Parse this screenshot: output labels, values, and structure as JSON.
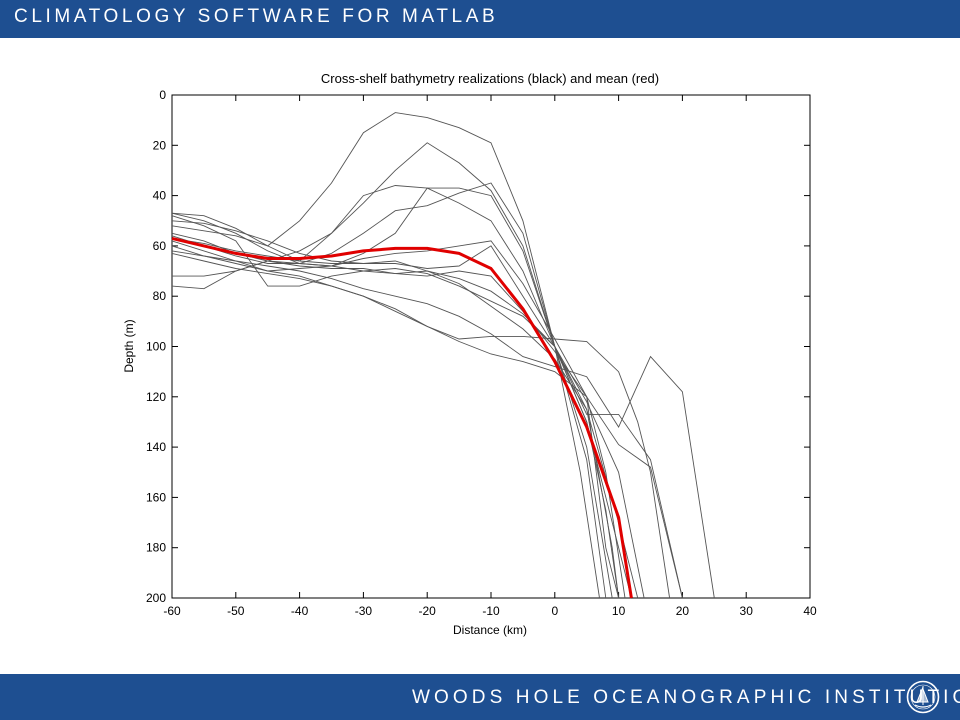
{
  "header": {
    "title": "CLIMATOLOGY SOFTWARE FOR MATLAB"
  },
  "footer": {
    "title": "WOODS HOLE OCEANOGRAPHIC INSTITUTION",
    "logo_icon": "whoi-seal-icon"
  },
  "colors": {
    "banner": "#1e4f91",
    "realization": "#555555",
    "mean": "#e00000"
  },
  "chart_data": {
    "type": "line",
    "title": "Cross-shelf bathymetry realizations (black) and mean (red)",
    "xlabel": "Distance (km)",
    "ylabel": "Depth (m)",
    "xlim": [
      -60,
      40
    ],
    "ylim": [
      0,
      200
    ],
    "y_reversed": true,
    "xticks": [
      -60,
      -50,
      -40,
      -30,
      -20,
      -10,
      0,
      10,
      20,
      30,
      40
    ],
    "yticks": [
      0,
      20,
      40,
      60,
      80,
      100,
      120,
      140,
      160,
      180,
      200
    ],
    "grid": false,
    "realizations": [
      [
        [
          -60,
          47
        ],
        [
          -55,
          48
        ],
        [
          -50,
          53
        ],
        [
          -45,
          60
        ],
        [
          -40,
          50
        ],
        [
          -35,
          35
        ],
        [
          -30,
          15
        ],
        [
          -25,
          7
        ],
        [
          -20,
          9
        ],
        [
          -15,
          13
        ],
        [
          -10,
          19
        ],
        [
          -5,
          50
        ],
        [
          0,
          100
        ],
        [
          5,
          130
        ],
        [
          8,
          165
        ],
        [
          10,
          200
        ]
      ],
      [
        [
          -60,
          52
        ],
        [
          -55,
          54
        ],
        [
          -50,
          56
        ],
        [
          -45,
          60
        ],
        [
          -40,
          66
        ],
        [
          -35,
          55
        ],
        [
          -30,
          43
        ],
        [
          -25,
          30
        ],
        [
          -20,
          19
        ],
        [
          -15,
          27
        ],
        [
          -10,
          38
        ],
        [
          -5,
          60
        ],
        [
          0,
          100
        ],
        [
          5,
          140
        ],
        [
          9,
          200
        ]
      ],
      [
        [
          -60,
          56
        ],
        [
          -55,
          60
        ],
        [
          -50,
          64
        ],
        [
          -45,
          67
        ],
        [
          -40,
          67
        ],
        [
          -35,
          63
        ],
        [
          -30,
          55
        ],
        [
          -25,
          46
        ],
        [
          -20,
          44
        ],
        [
          -15,
          39
        ],
        [
          -10,
          35
        ],
        [
          -5,
          55
        ],
        [
          0,
          100
        ],
        [
          4,
          150
        ],
        [
          7,
          200
        ]
      ],
      [
        [
          -60,
          47
        ],
        [
          -55,
          50
        ],
        [
          -50,
          55
        ],
        [
          -45,
          62
        ],
        [
          -40,
          67
        ],
        [
          -35,
          68
        ],
        [
          -30,
          63
        ],
        [
          -25,
          55
        ],
        [
          -20,
          37
        ],
        [
          -15,
          37
        ],
        [
          -10,
          40
        ],
        [
          -5,
          62
        ],
        [
          0,
          100
        ],
        [
          5,
          145
        ],
        [
          8,
          200
        ]
      ],
      [
        [
          -60,
          72
        ],
        [
          -55,
          72
        ],
        [
          -50,
          70
        ],
        [
          -45,
          66
        ],
        [
          -40,
          62
        ],
        [
          -35,
          55
        ],
        [
          -30,
          40
        ],
        [
          -25,
          36
        ],
        [
          -20,
          37
        ],
        [
          -15,
          43
        ],
        [
          -10,
          50
        ],
        [
          -5,
          70
        ],
        [
          0,
          100
        ],
        [
          5,
          127
        ],
        [
          10,
          127
        ],
        [
          15,
          145
        ],
        [
          20,
          200
        ]
      ],
      [
        [
          -60,
          60
        ],
        [
          -55,
          64
        ],
        [
          -50,
          67
        ],
        [
          -45,
          70
        ],
        [
          -40,
          69
        ],
        [
          -35,
          68
        ],
        [
          -30,
          65
        ],
        [
          -25,
          63
        ],
        [
          -20,
          62
        ],
        [
          -15,
          60
        ],
        [
          -10,
          58
        ],
        [
          -5,
          75
        ],
        [
          0,
          97
        ],
        [
          5,
          120
        ],
        [
          8,
          180
        ],
        [
          10,
          200
        ]
      ],
      [
        [
          -60,
          50
        ],
        [
          -55,
          51
        ],
        [
          -50,
          54
        ],
        [
          -45,
          58
        ],
        [
          -40,
          63
        ],
        [
          -35,
          66
        ],
        [
          -30,
          67
        ],
        [
          -25,
          67
        ],
        [
          -20,
          69
        ],
        [
          -15,
          68
        ],
        [
          -10,
          60
        ],
        [
          -5,
          80
        ],
        [
          0,
          100
        ],
        [
          5,
          130
        ],
        [
          12,
          200
        ]
      ],
      [
        [
          -60,
          58
        ],
        [
          -55,
          62
        ],
        [
          -50,
          66
        ],
        [
          -45,
          70
        ],
        [
          -40,
          72
        ],
        [
          -35,
          76
        ],
        [
          -30,
          80
        ],
        [
          -25,
          86
        ],
        [
          -20,
          92
        ],
        [
          -15,
          97
        ],
        [
          -10,
          96
        ],
        [
          -5,
          96
        ],
        [
          0,
          97
        ],
        [
          5,
          98
        ],
        [
          10,
          110
        ],
        [
          13,
          130
        ],
        [
          15,
          150
        ],
        [
          18,
          200
        ]
      ],
      [
        [
          -60,
          62
        ],
        [
          -55,
          64
        ],
        [
          -50,
          66
        ],
        [
          -45,
          68
        ],
        [
          -40,
          70
        ],
        [
          -35,
          73
        ],
        [
          -30,
          77
        ],
        [
          -25,
          80
        ],
        [
          -20,
          83
        ],
        [
          -15,
          88
        ],
        [
          -10,
          95
        ],
        [
          -5,
          104
        ],
        [
          0,
          108
        ],
        [
          5,
          112
        ],
        [
          10,
          132
        ],
        [
          15,
          104
        ],
        [
          20,
          118
        ],
        [
          25,
          200
        ]
      ],
      [
        [
          -60,
          63
        ],
        [
          -55,
          66
        ],
        [
          -50,
          69
        ],
        [
          -45,
          71
        ],
        [
          -40,
          73
        ],
        [
          -35,
          76
        ],
        [
          -30,
          80
        ],
        [
          -25,
          85
        ],
        [
          -20,
          92
        ],
        [
          -15,
          98
        ],
        [
          -10,
          103
        ],
        [
          -5,
          106
        ],
        [
          0,
          110
        ],
        [
          5,
          120
        ],
        [
          10,
          139
        ],
        [
          15,
          148
        ],
        [
          20,
          200
        ]
      ],
      [
        [
          -60,
          76
        ],
        [
          -55,
          77
        ],
        [
          -50,
          70
        ],
        [
          -45,
          66
        ],
        [
          -40,
          67
        ],
        [
          -35,
          68
        ],
        [
          -30,
          70
        ],
        [
          -25,
          71
        ],
        [
          -20,
          70
        ],
        [
          -15,
          73
        ],
        [
          -10,
          78
        ],
        [
          -5,
          87
        ],
        [
          0,
          100
        ],
        [
          5,
          125
        ],
        [
          9,
          180
        ],
        [
          10,
          200
        ]
      ],
      [
        [
          -60,
          55
        ],
        [
          -55,
          58
        ],
        [
          -50,
          63
        ],
        [
          -45,
          66
        ],
        [
          -40,
          68
        ],
        [
          -35,
          69
        ],
        [
          -30,
          69
        ],
        [
          -25,
          71
        ],
        [
          -20,
          72
        ],
        [
          -15,
          70
        ],
        [
          -10,
          72
        ],
        [
          -5,
          86
        ],
        [
          0,
          102
        ],
        [
          5,
          120
        ],
        [
          8,
          150
        ],
        [
          11,
          200
        ]
      ],
      [
        [
          -60,
          48
        ],
        [
          -55,
          52
        ],
        [
          -50,
          58
        ],
        [
          -45,
          76
        ],
        [
          -40,
          76
        ],
        [
          -35,
          72
        ],
        [
          -30,
          70
        ],
        [
          -25,
          69
        ],
        [
          -20,
          71
        ],
        [
          -15,
          76
        ],
        [
          -10,
          82
        ],
        [
          -5,
          88
        ],
        [
          0,
          100
        ],
        [
          5,
          122
        ],
        [
          10,
          150
        ],
        [
          14,
          200
        ]
      ],
      [
        [
          -60,
          57
        ],
        [
          -55,
          59
        ],
        [
          -50,
          62
        ],
        [
          -45,
          64
        ],
        [
          -40,
          66
        ],
        [
          -35,
          67
        ],
        [
          -30,
          67
        ],
        [
          -25,
          66
        ],
        [
          -20,
          70
        ],
        [
          -15,
          75
        ],
        [
          -10,
          84
        ],
        [
          -5,
          93
        ],
        [
          0,
          105
        ],
        [
          5,
          125
        ],
        [
          10,
          170
        ],
        [
          13,
          200
        ]
      ]
    ],
    "mean": [
      [
        -60,
        57
      ],
      [
        -55,
        60
      ],
      [
        -50,
        63
      ],
      [
        -45,
        65
      ],
      [
        -40,
        65
      ],
      [
        -35,
        64
      ],
      [
        -30,
        62
      ],
      [
        -25,
        61
      ],
      [
        -20,
        61
      ],
      [
        -15,
        63
      ],
      [
        -10,
        69
      ],
      [
        -5,
        85
      ],
      [
        0,
        106
      ],
      [
        5,
        132
      ],
      [
        10,
        168
      ],
      [
        12,
        200
      ]
    ]
  }
}
